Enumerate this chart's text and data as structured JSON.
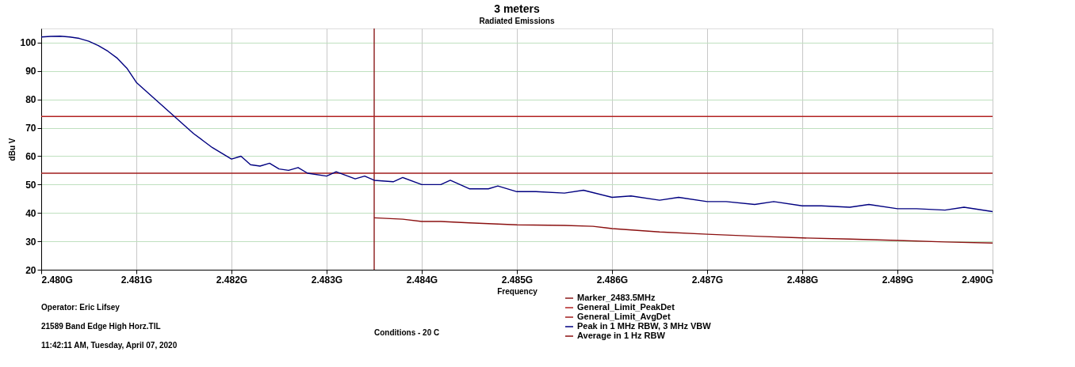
{
  "chart_data": {
    "type": "line",
    "title": "3 meters",
    "subtitle": "Radiated Emissions",
    "xlabel": "Frequency",
    "ylabel": "dBu V",
    "xlim": [
      2.48,
      2.49
    ],
    "ylim": [
      20,
      105
    ],
    "xticks": [
      {
        "value": 2.48,
        "label": "2.480G"
      },
      {
        "value": 2.481,
        "label": "2.481G"
      },
      {
        "value": 2.482,
        "label": "2.482G"
      },
      {
        "value": 2.483,
        "label": "2.483G"
      },
      {
        "value": 2.484,
        "label": "2.484G"
      },
      {
        "value": 2.485,
        "label": "2.485G"
      },
      {
        "value": 2.486,
        "label": "2.486G"
      },
      {
        "value": 2.487,
        "label": "2.487G"
      },
      {
        "value": 2.488,
        "label": "2.488G"
      },
      {
        "value": 2.489,
        "label": "2.489G"
      },
      {
        "value": 2.49,
        "label": "2.490G"
      }
    ],
    "yticks": [
      20,
      30,
      40,
      50,
      60,
      70,
      80,
      90,
      100
    ],
    "grid": true,
    "legend": "bottom",
    "line_style": "solid",
    "marker": "none",
    "series": [
      {
        "name": "Marker_2483.5MHz",
        "color": "#8b1a1a",
        "x": [
          2.4835,
          2.4835
        ],
        "values": [
          20,
          105
        ]
      },
      {
        "name": "General_Limit_PeakDet",
        "color": "#b22222",
        "x": [
          2.48,
          2.49
        ],
        "values": [
          74,
          74
        ]
      },
      {
        "name": "General_Limit_AvgDet",
        "color": "#a01c1c",
        "x": [
          2.48,
          2.49
        ],
        "values": [
          54,
          54
        ]
      },
      {
        "name": "Peak in 1 MHz RBW, 3 MHz VBW",
        "color": "#000080",
        "x": [
          2.48,
          2.4801,
          2.4802,
          2.4803,
          2.4804,
          2.4805,
          2.4806,
          2.4807,
          2.4808,
          2.4809,
          2.481,
          2.4811,
          2.4812,
          2.4813,
          2.4814,
          2.4815,
          2.4816,
          2.4817,
          2.4818,
          2.4819,
          2.482,
          2.4821,
          2.4822,
          2.4823,
          2.4824,
          2.4825,
          2.4826,
          2.4827,
          2.4828,
          2.483,
          2.4831,
          2.4833,
          2.4834,
          2.4835,
          2.4837,
          2.4838,
          2.484,
          2.4842,
          2.4843,
          2.4845,
          2.4847,
          2.4848,
          2.485,
          2.4852,
          2.4855,
          2.4857,
          2.486,
          2.4862,
          2.4865,
          2.4867,
          2.487,
          2.4872,
          2.4875,
          2.4877,
          2.488,
          2.4882,
          2.4885,
          2.4887,
          2.489,
          2.4892,
          2.4895,
          2.4897,
          2.49
        ],
        "values": [
          102,
          102.2,
          102.3,
          102,
          101.5,
          100.5,
          99,
          97,
          94.5,
          91,
          86,
          83,
          80,
          77,
          74,
          71,
          68,
          65.5,
          63,
          61,
          59,
          60,
          57,
          56.5,
          57.5,
          55.5,
          55,
          56,
          54,
          53,
          54.5,
          52,
          53,
          51.5,
          51,
          52.5,
          50,
          50,
          51.5,
          48.5,
          48.5,
          49.5,
          47.5,
          47.5,
          47,
          48,
          45.5,
          46,
          44.5,
          45.5,
          44,
          44,
          43,
          44,
          42.5,
          42.5,
          42,
          43,
          41.5,
          41.5,
          41,
          42,
          40.5
        ]
      },
      {
        "name": "Average in 1 Hz RBW",
        "color": "#8b1010",
        "x": [
          2.4835,
          2.4838,
          2.484,
          2.4842,
          2.4845,
          2.485,
          2.4855,
          2.4858,
          2.486,
          2.4865,
          2.487,
          2.4875,
          2.488,
          2.4885,
          2.489,
          2.4895,
          2.49
        ],
        "values": [
          38.3,
          37.8,
          37,
          37,
          36.5,
          35.8,
          35.6,
          35.3,
          34.5,
          33.3,
          32.5,
          31.8,
          31.2,
          30.8,
          30.3,
          29.8,
          29.4
        ]
      }
    ],
    "annotations": [
      "Operator: Eric Lifsey",
      "21589 Band Edge High Horz.TIL",
      "11:42:11 AM, Tuesday, April 07, 2020",
      "Conditions - 20 C"
    ]
  }
}
